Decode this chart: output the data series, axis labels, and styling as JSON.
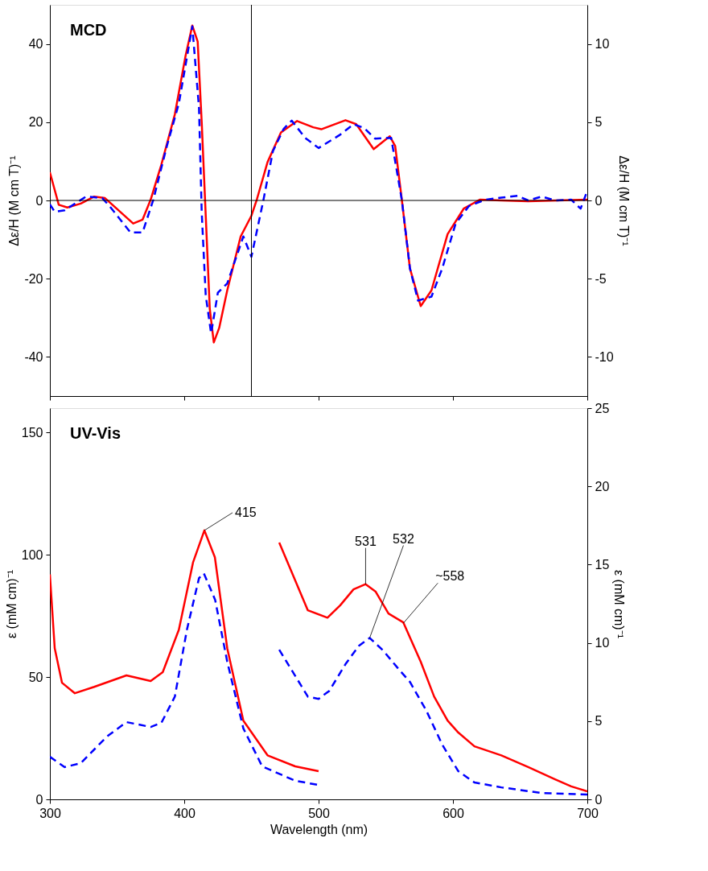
{
  "chart_data": [
    {
      "type": "line",
      "ylabel": "Δε/H (M cm T)⁻¹",
      "y2label": "Δε/H (M cm T)⁻¹",
      "annotations": [
        "MCD"
      ],
      "tick_labels": "y",
      "xlim": [
        300,
        700
      ],
      "xticks": [
        300,
        400,
        500,
        600,
        700
      ],
      "ylim": [
        -50,
        50
      ],
      "yticks": [
        -40,
        -20,
        0,
        20,
        40
      ],
      "y2lim": [
        -12.5,
        12.5
      ],
      "y2ticks": [
        -10,
        -5,
        0,
        5,
        10
      ],
      "ref_lines": [
        {
          "axis": "y",
          "value": 0
        },
        {
          "axis": "x",
          "value": 450
        }
      ],
      "series": [
        {
          "color": "#ff0000",
          "line_style": "solid",
          "x": [
            300,
            306.6,
            313,
            323,
            333,
            341,
            353,
            362,
            369,
            375,
            383,
            393,
            401,
            406,
            410,
            413,
            416,
            419,
            422,
            426,
            432,
            442,
            450,
            454,
            462,
            472,
            484,
            496,
            502,
            520,
            528,
            541,
            553,
            557,
            562,
            568,
            576,
            584,
            596,
            608,
            620,
            636,
            656,
            700
          ],
          "values": [
            7.2,
            -1.1,
            -1.8,
            -0.8,
            1,
            0.6,
            -3.1,
            -5.9,
            -4.9,
            0.2,
            9.2,
            22,
            37,
            44.7,
            40.6,
            20,
            -3.9,
            -27.7,
            -36.3,
            -32.6,
            -23,
            -9.2,
            -3.9,
            0.2,
            9.8,
            17.4,
            20.3,
            18.7,
            18.2,
            20.5,
            19.5,
            13.1,
            16.4,
            13.9,
            0,
            -17.4,
            -27,
            -23,
            -8.6,
            -2.1,
            0.2,
            0,
            -0.2,
            0.2
          ]
        },
        {
          "color": "#0000ff",
          "line_style": "dashed",
          "x": [
            300,
            303.6,
            311,
            327,
            339,
            345,
            360,
            369,
            377,
            387,
            396,
            406,
            411,
            413,
            416,
            420,
            425,
            432,
            444,
            450,
            459,
            466,
            474,
            480,
            490,
            500,
            516,
            526,
            534,
            542,
            554,
            562,
            568,
            574,
            584,
            592,
            602,
            612,
            624,
            636,
            648,
            656,
            666,
            676,
            688,
            695,
            700
          ],
          "values": [
            -1,
            -2.9,
            -2.5,
            1,
            0.6,
            -1.7,
            -8.2,
            -8.2,
            0.2,
            13.8,
            24.8,
            44.5,
            23.6,
            -3,
            -24.3,
            -34,
            -23.6,
            -21.2,
            -9.2,
            -14.4,
            0.2,
            12.6,
            18.3,
            20.4,
            16,
            13.4,
            16.8,
            19.5,
            18.5,
            15.8,
            16,
            0,
            -17.4,
            -25.6,
            -24.6,
            -17.4,
            -5.9,
            -1.4,
            0.2,
            0.7,
            1.2,
            0,
            1,
            0,
            0.2,
            -2.1,
            2.5
          ]
        }
      ]
    },
    {
      "type": "line",
      "xlabel": "Wavelength (nm)",
      "ylabel": "ε (mM cm)⁻¹",
      "y2label": "ε (mM cm)⁻¹",
      "annotations": [
        "UV-Vis",
        {
          "text": "415",
          "x": 415,
          "y": 110
        },
        {
          "text": "531",
          "x": 535,
          "y": 88
        },
        {
          "text": "532",
          "x": 538,
          "y": 66
        },
        {
          "text": "~558",
          "x": 563,
          "y": 72
        }
      ],
      "xlim": [
        300,
        700
      ],
      "xticks": [
        300,
        400,
        500,
        600,
        700
      ],
      "ylim": [
        0,
        160
      ],
      "yticks": [
        0,
        50,
        100,
        150
      ],
      "y2lim": [
        0,
        25
      ],
      "y2ticks": [
        0,
        5,
        10,
        15,
        20,
        25
      ],
      "series": [
        {
          "color": "#ff0000",
          "line_style": "solid",
          "x": [
            300,
            303.6,
            309,
            318.6,
            333,
            357,
            375,
            384,
            396,
            406.6,
            415,
            422.8,
            432,
            444,
            462,
            482.6,
            500
          ],
          "values": [
            92,
            61.8,
            47.7,
            43.4,
            46,
            50.7,
            48.4,
            52,
            69.4,
            97,
            110,
            99,
            61.8,
            32.2,
            18,
            13.5,
            11.5
          ]
        },
        {
          "color": "#0000ff",
          "line_style": "dashed",
          "x": [
            300,
            311,
            323,
            342.5,
            357,
            375,
            383,
            393,
            402,
            411,
            414.6,
            423,
            432,
            444,
            458,
            482.6,
            500
          ],
          "values": [
            17.4,
            13.2,
            14.8,
            25.7,
            31.6,
            29.6,
            31.3,
            42,
            69.4,
            90.5,
            92.4,
            81.6,
            56.3,
            29,
            13.5,
            7.6,
            5.9
          ]
        },
        {
          "color": "#ff0000",
          "line_style": "solid",
          "x": [
            470.7,
            492,
            506.6,
            516,
            526,
            535,
            542.5,
            552,
            563,
            576,
            586,
            596,
            604,
            616,
            636,
            656,
            676,
            688,
            700
          ],
          "values": [
            105,
            77.3,
            74.3,
            79.3,
            85.9,
            88,
            84.9,
            76,
            72.4,
            56.3,
            42,
            32.2,
            27.3,
            21.7,
            18,
            13.2,
            8.2,
            5.3,
            3.3
          ]
        },
        {
          "color": "#0000ff",
          "line_style": "dashed",
          "x": [
            470.7,
            492,
            500,
            508,
            520,
            530,
            538,
            548,
            560,
            568,
            580,
            592,
            604,
            616,
            636,
            666,
            700
          ],
          "values": [
            61.2,
            42,
            41.1,
            44.4,
            55.3,
            62.8,
            66,
            60.9,
            53,
            48,
            36.5,
            22.4,
            11.5,
            6.9,
            4.9,
            2.6,
            2
          ]
        }
      ]
    }
  ]
}
